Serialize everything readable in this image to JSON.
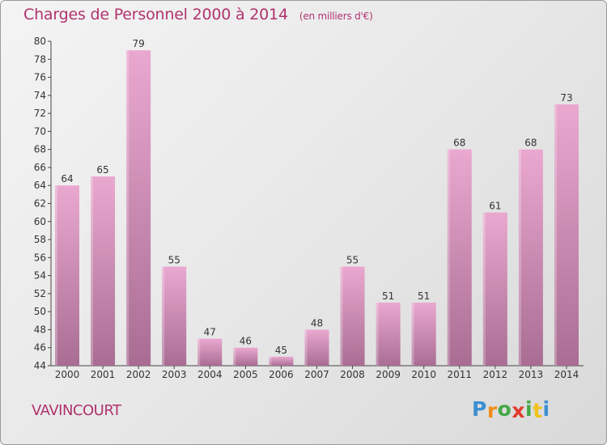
{
  "header": {
    "title": "Charges de Personnel 2000 à 2014",
    "subtitle": "(en milliers d'€)"
  },
  "footer": {
    "city": "VAVINCOURT",
    "logo_letters": [
      "P",
      "r",
      "o",
      "x",
      "i",
      "t",
      "i"
    ],
    "logo_colors": [
      "#3d8fd1",
      "#f08c1a",
      "#43a847",
      "#e23a2c",
      "#43a847",
      "#f2c21a",
      "#3d8fd1"
    ]
  },
  "colors": {
    "bar_light": "#eaa8d0",
    "bar_dark": "#a96d93",
    "accent": "#b0336d"
  },
  "chart_data": {
    "type": "bar",
    "title": "Charges de Personnel 2000 à 2014",
    "subtitle": "(en milliers d'€)",
    "categories": [
      "2000",
      "2001",
      "2002",
      "2003",
      "2004",
      "2005",
      "2006",
      "2007",
      "2008",
      "2009",
      "2010",
      "2011",
      "2012",
      "2013",
      "2014"
    ],
    "values": [
      64,
      65,
      79,
      55,
      47,
      46,
      45,
      48,
      55,
      51,
      51,
      68,
      61,
      68,
      73
    ],
    "ylim": [
      44,
      80
    ],
    "yticks": [
      44,
      46,
      48,
      50,
      52,
      54,
      56,
      58,
      60,
      62,
      64,
      66,
      68,
      70,
      72,
      74,
      76,
      78,
      80
    ],
    "grid": false,
    "xlabel": "",
    "ylabel": ""
  }
}
